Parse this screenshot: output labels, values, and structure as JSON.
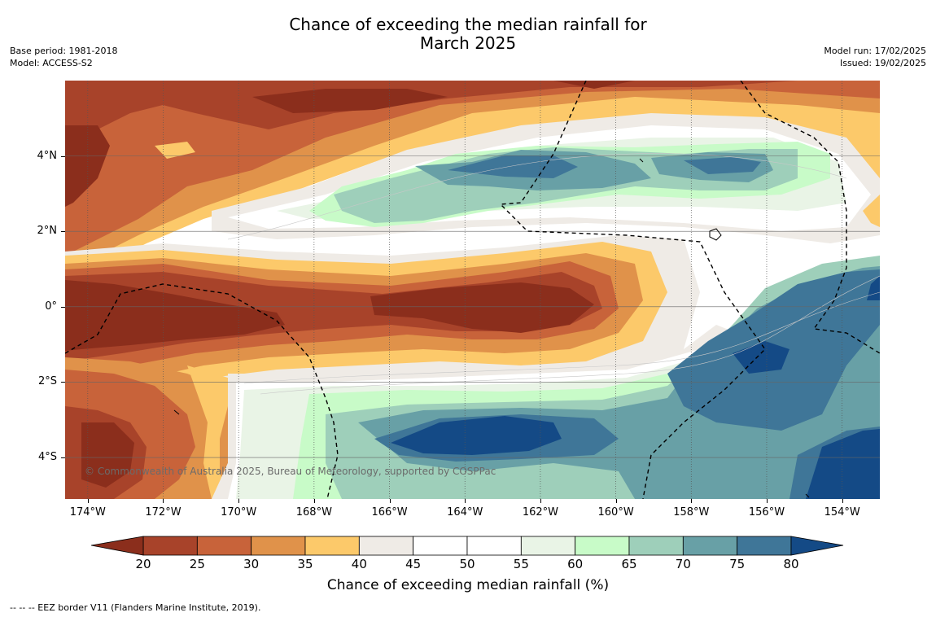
{
  "header": {
    "title_line1": "Chance of exceeding the median rainfall for",
    "title_line2": "March 2025",
    "base_period": "Base period: 1981-2018",
    "model": "Model: ACCESS-S2",
    "model_run": "Model run: 17/02/2025",
    "issued": "Issued: 19/02/2025"
  },
  "map": {
    "lat_range": [
      -5.1,
      6.0
    ],
    "lon_range": [
      -174.6,
      -153.0
    ],
    "lat_ticks": [
      {
        "value": 4,
        "label": "4°N"
      },
      {
        "value": 2,
        "label": "2°N"
      },
      {
        "value": 0,
        "label": "0°"
      },
      {
        "value": -2,
        "label": "2°S"
      },
      {
        "value": -4,
        "label": "4°S"
      }
    ],
    "lon_ticks": [
      {
        "value": -174,
        "label": "174°W"
      },
      {
        "value": -172,
        "label": "172°W"
      },
      {
        "value": -170,
        "label": "170°W"
      },
      {
        "value": -168,
        "label": "168°W"
      },
      {
        "value": -166,
        "label": "166°W"
      },
      {
        "value": -164,
        "label": "164°W"
      },
      {
        "value": -162,
        "label": "162°W"
      },
      {
        "value": -160,
        "label": "160°W"
      },
      {
        "value": -158,
        "label": "158°W"
      },
      {
        "value": -156,
        "label": "156°W"
      },
      {
        "value": -154,
        "label": "154°W"
      }
    ],
    "copyright": "© Commonwealth of Australia 2025, Bureau of Meteorology, supported by COSPPac"
  },
  "colorbar": {
    "title": "Chance of exceeding median rainfall (%)",
    "levels": [
      20,
      25,
      30,
      35,
      40,
      45,
      50,
      55,
      60,
      65,
      70,
      75,
      80
    ],
    "under_color": "#8b2e1c",
    "over_color": "#144a86",
    "colors": [
      "#a8432a",
      "#c8633a",
      "#e0924a",
      "#fcc96a",
      "#efebe6",
      "#ffffff",
      "#ffffff",
      "#e9f4e6",
      "#c8fbc8",
      "#9ecfba",
      "#68a0a6",
      "#3f7698"
    ]
  },
  "footnote": "--  --  -- EEZ border V11 (Flanders Marine Institute, 2019)."
}
